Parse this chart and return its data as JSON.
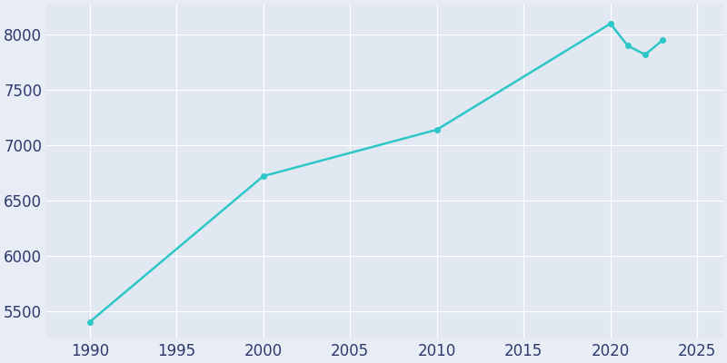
{
  "years": [
    1990,
    2000,
    2010,
    2020,
    2021,
    2022,
    2023
  ],
  "population": [
    5400,
    6720,
    7140,
    8100,
    7900,
    7820,
    7950
  ],
  "line_color": "#2dc7c7",
  "figure_bg_color": "#e8ecf4",
  "plot_bg_color": "#e2e8f2",
  "text_color": "#2d3a6e",
  "xlim": [
    1987.5,
    2026.5
  ],
  "ylim": [
    5250,
    8280
  ],
  "xticks": [
    1990,
    1995,
    2000,
    2005,
    2010,
    2015,
    2020,
    2025
  ],
  "yticks": [
    5500,
    6000,
    6500,
    7000,
    7500,
    8000
  ],
  "line_width": 1.8,
  "marker": "o",
  "marker_size": 4,
  "tick_fontsize": 12,
  "grid_color": "#ffffff",
  "grid_linewidth": 0.8
}
